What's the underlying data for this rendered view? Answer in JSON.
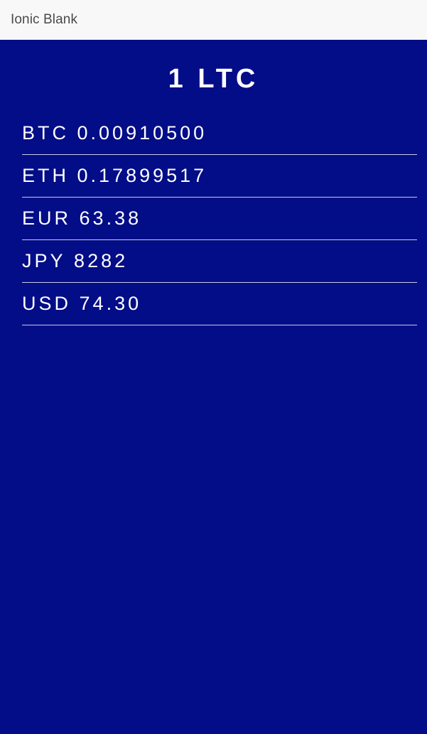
{
  "header": {
    "title": "Ionic Blank"
  },
  "main": {
    "heading": "1 LTC",
    "rates": [
      {
        "code": "BTC",
        "value": "0.00910500"
      },
      {
        "code": "ETH",
        "value": "0.17899517"
      },
      {
        "code": "EUR",
        "value": "63.38"
      },
      {
        "code": "JPY",
        "value": "8282"
      },
      {
        "code": "USD",
        "value": "74.30"
      }
    ]
  },
  "colors": {
    "background": "#030d87",
    "toolbar": "#f8f8f8",
    "text": "#ffffff",
    "divider": "#c8cbe6"
  }
}
